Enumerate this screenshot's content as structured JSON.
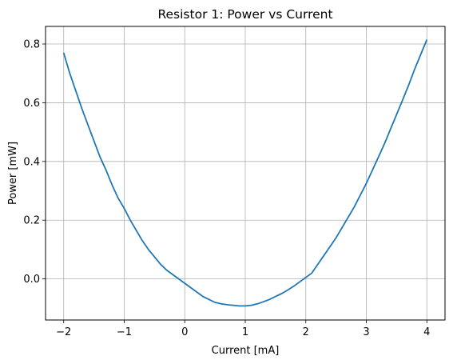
{
  "chart_data": {
    "type": "line",
    "title": "Resistor 1: Power vs Current",
    "xlabel": "Current [mA]",
    "ylabel": "Power [mW]",
    "xlim": [
      -2.3,
      4.3
    ],
    "ylim": [
      -0.14,
      0.86
    ],
    "xticks": [
      -2,
      -1,
      0,
      1,
      2,
      3,
      4
    ],
    "xtick_labels": [
      "−2",
      "−1",
      "0",
      "1",
      "2",
      "3",
      "4"
    ],
    "yticks": [
      0.0,
      0.2,
      0.4,
      0.6,
      0.8
    ],
    "ytick_labels": [
      "0.0",
      "0.2",
      "0.4",
      "0.6",
      "0.8"
    ],
    "grid": true,
    "legend": "none",
    "colors": {
      "series": "#1f77b4",
      "grid": "#b0b0b0",
      "axes": "#000000"
    },
    "series": [
      {
        "x": [
          -2.0,
          -1.9,
          -1.8,
          -1.7,
          -1.6,
          -1.5,
          -1.4,
          -1.3,
          -1.2,
          -1.1,
          -1.0,
          -0.9,
          -0.8,
          -0.7,
          -0.6,
          -0.5,
          -0.4,
          -0.3,
          -0.2,
          -0.1,
          0.0,
          0.1,
          0.2,
          0.3,
          0.4,
          0.5,
          0.6,
          0.7,
          0.8,
          0.9,
          1.0,
          1.1,
          1.2,
          1.3,
          1.4,
          1.5,
          1.6,
          1.7,
          1.8,
          1.9,
          2.0,
          2.1,
          2.2,
          2.3,
          2.4,
          2.5,
          2.6,
          2.7,
          2.8,
          2.9,
          3.0,
          3.1,
          3.2,
          3.3,
          3.4,
          3.5,
          3.6,
          3.7,
          3.8,
          3.9,
          4.0
        ],
        "y": [
          0.77,
          0.7,
          0.64,
          0.58,
          0.525,
          0.47,
          0.415,
          0.37,
          0.32,
          0.275,
          0.24,
          0.2,
          0.165,
          0.13,
          0.1,
          0.075,
          0.05,
          0.03,
          0.015,
          0.0,
          -0.015,
          -0.03,
          -0.045,
          -0.06,
          -0.07,
          -0.08,
          -0.085,
          -0.088,
          -0.09,
          -0.092,
          -0.092,
          -0.09,
          -0.085,
          -0.078,
          -0.07,
          -0.06,
          -0.05,
          -0.038,
          -0.025,
          -0.01,
          0.005,
          0.02,
          0.05,
          0.08,
          0.11,
          0.14,
          0.175,
          0.21,
          0.245,
          0.285,
          0.325,
          0.37,
          0.415,
          0.46,
          0.51,
          0.56,
          0.61,
          0.66,
          0.715,
          0.765,
          0.815
        ]
      }
    ]
  }
}
